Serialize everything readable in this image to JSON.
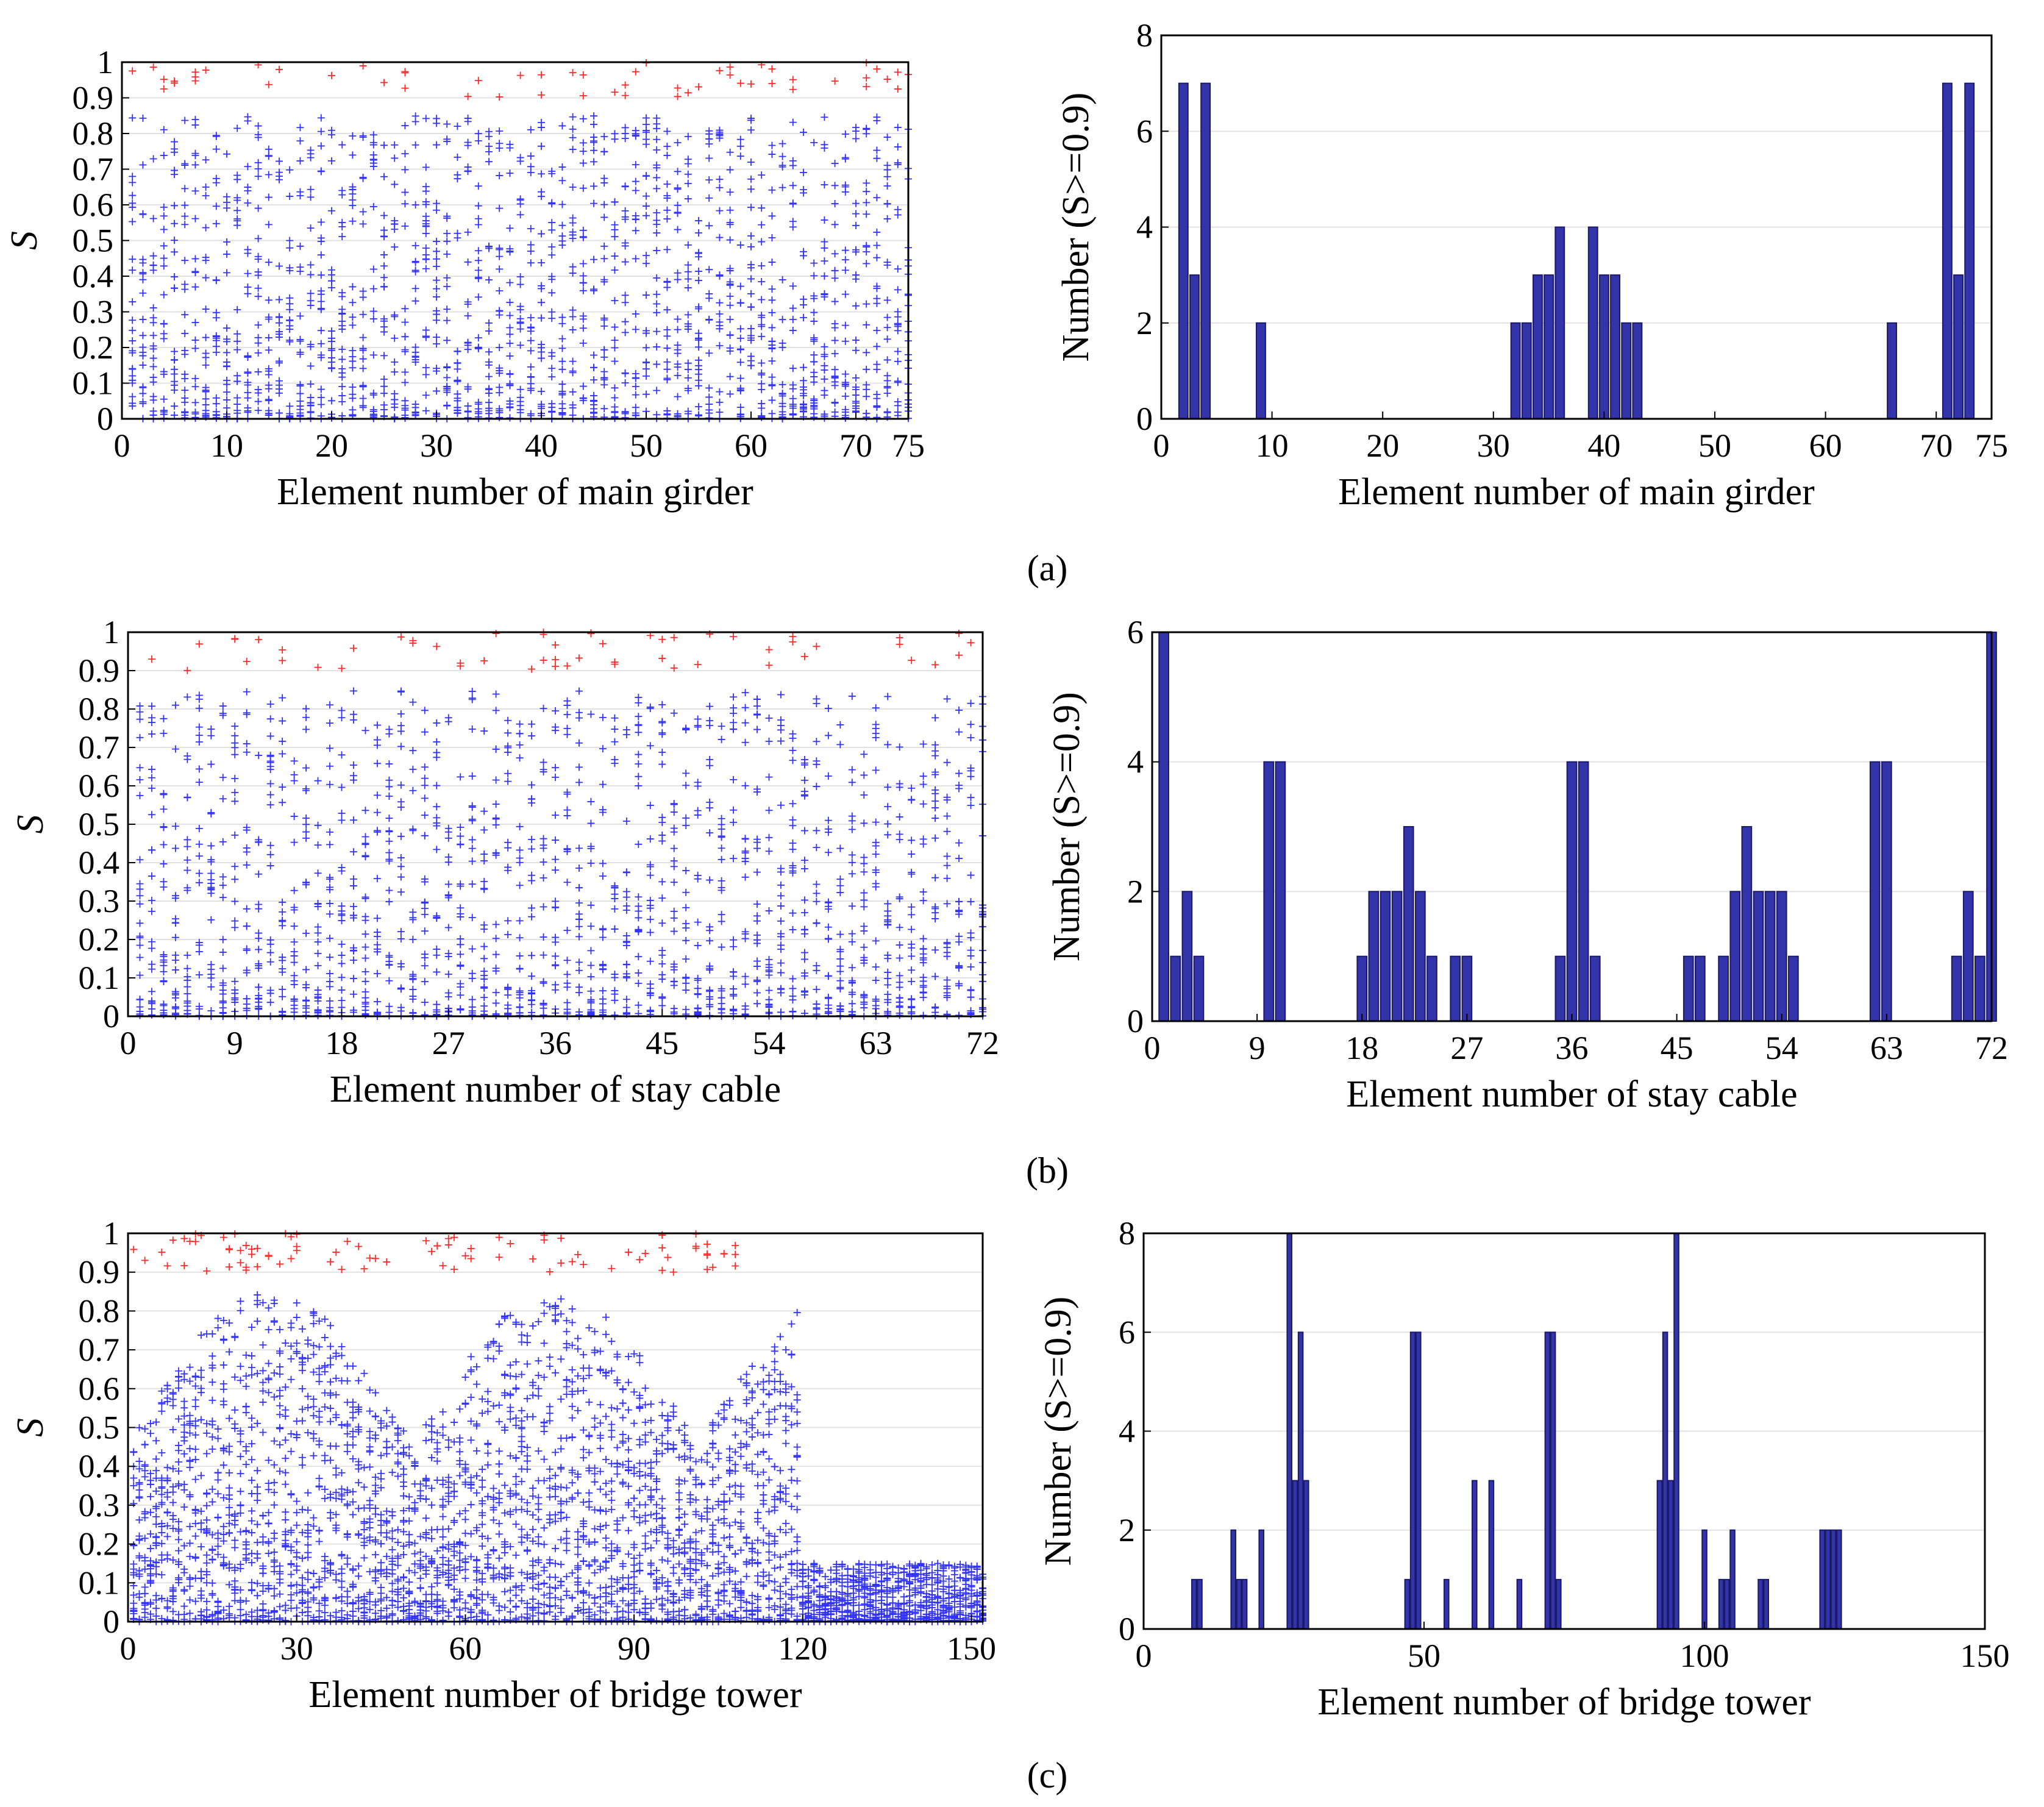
{
  "panel_labels": [
    "(a)",
    "(b)",
    "(c)"
  ],
  "colors": {
    "above": "#ff2a2a",
    "below": "#3333ff",
    "bar_fill": "#3333aa",
    "bar_edge": "#1a1a66"
  },
  "chart_data": [
    {
      "type": "scatter",
      "panel": "a",
      "xlabel": "Element number of main girder",
      "ylabel": "S",
      "xlim": [
        0,
        75
      ],
      "ylim": [
        0,
        1
      ],
      "xticks": [
        "0",
        "10",
        "20",
        "30",
        "40",
        "50",
        "60",
        "70",
        "75"
      ],
      "xtick_values": [
        0,
        10,
        20,
        30,
        40,
        50,
        60,
        70,
        75
      ],
      "yticks": [
        "0",
        "0.1",
        "0.2",
        "0.3",
        "0.4",
        "0.5",
        "0.6",
        "0.7",
        "0.8",
        "0.9",
        "1"
      ],
      "ytick_values": [
        0,
        0.1,
        0.2,
        0.3,
        0.4,
        0.5,
        0.6,
        0.7,
        0.8,
        0.9,
        1
      ],
      "threshold": 0.9,
      "n_elements": 75,
      "grid": true
    },
    {
      "type": "bar",
      "panel": "a",
      "xlabel": "Element number of main girder",
      "ylabel": "Number (S>=0.9)",
      "xlim": [
        0,
        75
      ],
      "ylim": [
        0,
        8
      ],
      "xticks": [
        "0",
        "10",
        "20",
        "30",
        "40",
        "50",
        "60",
        "70",
        "75"
      ],
      "xtick_values": [
        0,
        10,
        20,
        30,
        40,
        50,
        60,
        70,
        75
      ],
      "yticks": [
        "0",
        "2",
        "4",
        "6",
        "8"
      ],
      "ytick_values": [
        0,
        2,
        4,
        6,
        8
      ],
      "bars": [
        {
          "x": 2,
          "value": 7
        },
        {
          "x": 3,
          "value": 3
        },
        {
          "x": 4,
          "value": 7
        },
        {
          "x": 9,
          "value": 2
        },
        {
          "x": 32,
          "value": 2
        },
        {
          "x": 33,
          "value": 2
        },
        {
          "x": 34,
          "value": 3
        },
        {
          "x": 35,
          "value": 3
        },
        {
          "x": 36,
          "value": 4
        },
        {
          "x": 39,
          "value": 4
        },
        {
          "x": 40,
          "value": 3
        },
        {
          "x": 41,
          "value": 3
        },
        {
          "x": 42,
          "value": 2
        },
        {
          "x": 43,
          "value": 2
        },
        {
          "x": 66,
          "value": 2
        },
        {
          "x": 71,
          "value": 7
        },
        {
          "x": 72,
          "value": 3
        },
        {
          "x": 73,
          "value": 7
        }
      ],
      "grid": true
    },
    {
      "type": "scatter",
      "panel": "b",
      "xlabel": "Element number of stay cable",
      "ylabel": "S",
      "xlim": [
        0,
        72
      ],
      "ylim": [
        0,
        1
      ],
      "xticks": [
        "0",
        "9",
        "18",
        "27",
        "36",
        "45",
        "54",
        "63",
        "72"
      ],
      "xtick_values": [
        0,
        9,
        18,
        27,
        36,
        45,
        54,
        63,
        72
      ],
      "yticks": [
        "0",
        "0.1",
        "0.2",
        "0.3",
        "0.4",
        "0.5",
        "0.6",
        "0.7",
        "0.8",
        "0.9",
        "1"
      ],
      "ytick_values": [
        0,
        0.1,
        0.2,
        0.3,
        0.4,
        0.5,
        0.6,
        0.7,
        0.8,
        0.9,
        1
      ],
      "threshold": 0.9,
      "n_elements": 72,
      "grid": true
    },
    {
      "type": "bar",
      "panel": "b",
      "xlabel": "Element number of stay cable",
      "ylabel": "Number (S>=0.9)",
      "xlim": [
        0,
        72
      ],
      "ylim": [
        0,
        6
      ],
      "xticks": [
        "0",
        "9",
        "18",
        "27",
        "36",
        "45",
        "54",
        "63",
        "72"
      ],
      "xtick_values": [
        0,
        9,
        18,
        27,
        36,
        45,
        54,
        63,
        72
      ],
      "yticks": [
        "0",
        "2",
        "4",
        "6"
      ],
      "ytick_values": [
        0,
        2,
        4,
        6
      ],
      "bars": [
        {
          "x": 1,
          "value": 6
        },
        {
          "x": 2,
          "value": 1
        },
        {
          "x": 3,
          "value": 2
        },
        {
          "x": 4,
          "value": 1
        },
        {
          "x": 10,
          "value": 4
        },
        {
          "x": 11,
          "value": 4
        },
        {
          "x": 18,
          "value": 1
        },
        {
          "x": 19,
          "value": 2
        },
        {
          "x": 20,
          "value": 2
        },
        {
          "x": 21,
          "value": 2
        },
        {
          "x": 22,
          "value": 3
        },
        {
          "x": 23,
          "value": 2
        },
        {
          "x": 24,
          "value": 1
        },
        {
          "x": 26,
          "value": 1
        },
        {
          "x": 27,
          "value": 1
        },
        {
          "x": 35,
          "value": 1
        },
        {
          "x": 36,
          "value": 4
        },
        {
          "x": 37,
          "value": 4
        },
        {
          "x": 38,
          "value": 1
        },
        {
          "x": 46,
          "value": 1
        },
        {
          "x": 47,
          "value": 1
        },
        {
          "x": 49,
          "value": 1
        },
        {
          "x": 50,
          "value": 2
        },
        {
          "x": 51,
          "value": 3
        },
        {
          "x": 52,
          "value": 2
        },
        {
          "x": 53,
          "value": 2
        },
        {
          "x": 54,
          "value": 2
        },
        {
          "x": 55,
          "value": 1
        },
        {
          "x": 62,
          "value": 4
        },
        {
          "x": 63,
          "value": 4
        },
        {
          "x": 69,
          "value": 1
        },
        {
          "x": 70,
          "value": 2
        },
        {
          "x": 71,
          "value": 1
        },
        {
          "x": 72,
          "value": 6
        }
      ],
      "grid": true
    },
    {
      "type": "scatter",
      "panel": "c",
      "xlabel": "Element number of bridge tower",
      "ylabel": "S",
      "xlim": [
        0,
        152
      ],
      "ylim": [
        0,
        1
      ],
      "xticks": [
        "0",
        "30",
        "60",
        "90",
        "120",
        "150"
      ],
      "xtick_values": [
        0,
        30,
        60,
        90,
        120,
        150
      ],
      "yticks": [
        "0",
        "0.1",
        "0.2",
        "0.3",
        "0.4",
        "0.5",
        "0.6",
        "0.7",
        "0.8",
        "0.9",
        "1"
      ],
      "ytick_values": [
        0,
        0.1,
        0.2,
        0.3,
        0.4,
        0.5,
        0.6,
        0.7,
        0.8,
        0.9,
        1
      ],
      "threshold": 0.9,
      "n_elements": 152,
      "grid": true
    },
    {
      "type": "bar",
      "panel": "c",
      "xlabel": "Element number of bridge tower",
      "ylabel": "Number (S>=0.9)",
      "xlim": [
        0,
        150
      ],
      "ylim": [
        0,
        8
      ],
      "xticks": [
        "0",
        "50",
        "100",
        "150"
      ],
      "xtick_values": [
        0,
        50,
        100,
        150
      ],
      "yticks": [
        "0",
        "2",
        "4",
        "6",
        "8"
      ],
      "ytick_values": [
        0,
        2,
        4,
        6,
        8
      ],
      "bars": [
        {
          "x": 9,
          "value": 1
        },
        {
          "x": 10,
          "value": 1
        },
        {
          "x": 16,
          "value": 2
        },
        {
          "x": 17,
          "value": 1
        },
        {
          "x": 18,
          "value": 1
        },
        {
          "x": 21,
          "value": 2
        },
        {
          "x": 26,
          "value": 8
        },
        {
          "x": 27,
          "value": 3
        },
        {
          "x": 28,
          "value": 6
        },
        {
          "x": 29,
          "value": 3
        },
        {
          "x": 47,
          "value": 1
        },
        {
          "x": 48,
          "value": 6
        },
        {
          "x": 49,
          "value": 6
        },
        {
          "x": 54,
          "value": 1
        },
        {
          "x": 59,
          "value": 3
        },
        {
          "x": 62,
          "value": 3
        },
        {
          "x": 67,
          "value": 1
        },
        {
          "x": 72,
          "value": 6
        },
        {
          "x": 73,
          "value": 6
        },
        {
          "x": 74,
          "value": 1
        },
        {
          "x": 92,
          "value": 3
        },
        {
          "x": 93,
          "value": 6
        },
        {
          "x": 94,
          "value": 3
        },
        {
          "x": 95,
          "value": 8
        },
        {
          "x": 100,
          "value": 2
        },
        {
          "x": 103,
          "value": 1
        },
        {
          "x": 104,
          "value": 1
        },
        {
          "x": 105,
          "value": 2
        },
        {
          "x": 110,
          "value": 1
        },
        {
          "x": 111,
          "value": 1
        },
        {
          "x": 121,
          "value": 2
        },
        {
          "x": 122,
          "value": 2
        },
        {
          "x": 123,
          "value": 2
        },
        {
          "x": 124,
          "value": 2
        }
      ],
      "grid": true
    }
  ]
}
